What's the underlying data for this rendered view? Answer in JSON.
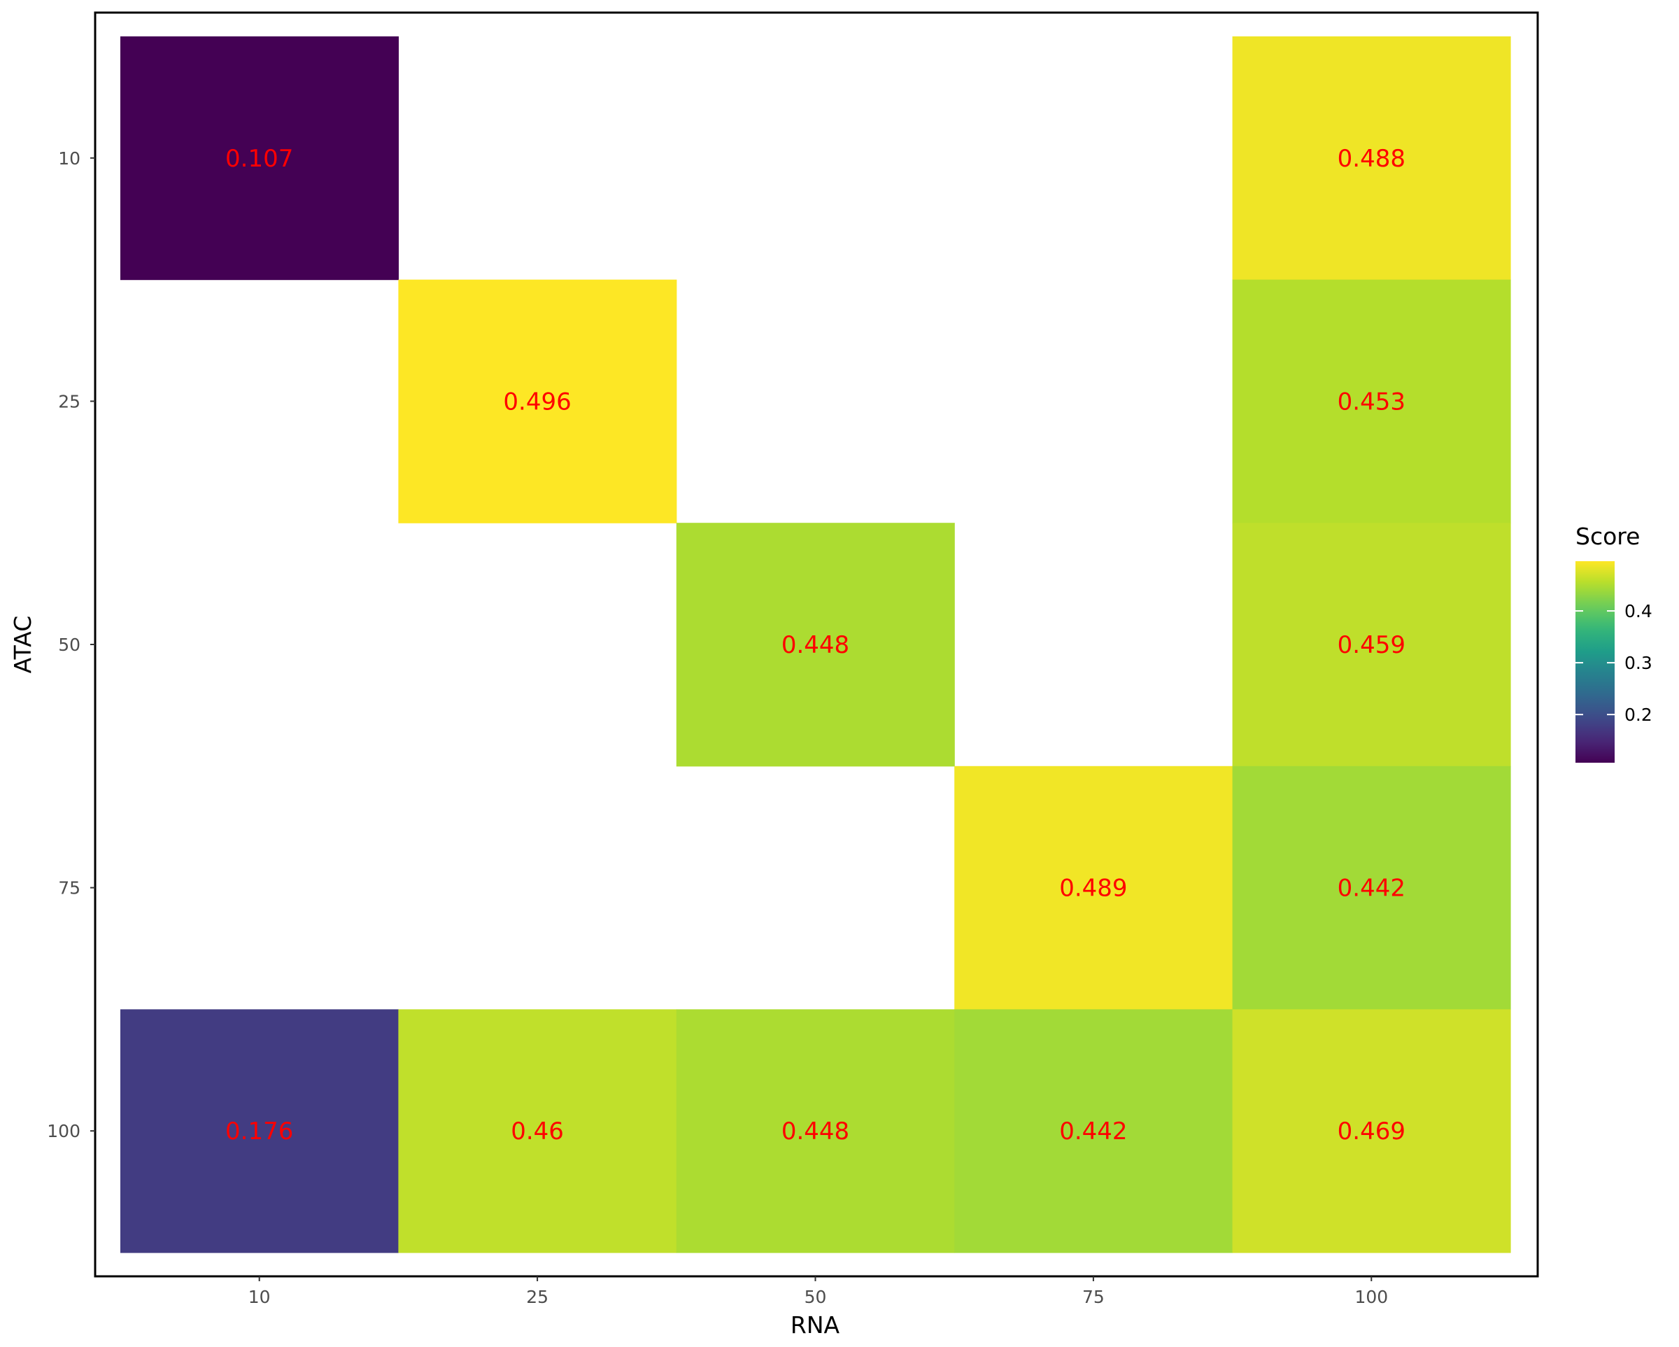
{
  "chart_data": {
    "type": "heatmap",
    "title": "",
    "xlabel": "RNA",
    "ylabel": "ATAC",
    "x_categories": [
      "10",
      "25",
      "50",
      "75",
      "100"
    ],
    "y_categories": [
      "10",
      "25",
      "50",
      "75",
      "100"
    ],
    "cells": [
      {
        "x": "10",
        "y": "10",
        "value": 0.107,
        "label": "0.107"
      },
      {
        "x": "100",
        "y": "10",
        "value": 0.488,
        "label": "0.488"
      },
      {
        "x": "25",
        "y": "25",
        "value": 0.496,
        "label": "0.496"
      },
      {
        "x": "100",
        "y": "25",
        "value": 0.453,
        "label": "0.453"
      },
      {
        "x": "50",
        "y": "50",
        "value": 0.448,
        "label": "0.448"
      },
      {
        "x": "100",
        "y": "50",
        "value": 0.459,
        "label": "0.459"
      },
      {
        "x": "75",
        "y": "75",
        "value": 0.489,
        "label": "0.489"
      },
      {
        "x": "100",
        "y": "75",
        "value": 0.442,
        "label": "0.442"
      },
      {
        "x": "10",
        "y": "100",
        "value": 0.176,
        "label": "0.176"
      },
      {
        "x": "25",
        "y": "100",
        "value": 0.46,
        "label": "0.46"
      },
      {
        "x": "50",
        "y": "100",
        "value": 0.448,
        "label": "0.448"
      },
      {
        "x": "75",
        "y": "100",
        "value": 0.442,
        "label": "0.442"
      },
      {
        "x": "100",
        "y": "100",
        "value": 0.469,
        "label": "0.469"
      }
    ],
    "legend": {
      "title": "Score",
      "ticks": [
        0.2,
        0.3,
        0.4
      ],
      "tick_labels": [
        "0.2",
        "0.3",
        "0.4"
      ],
      "range": [
        0.107,
        0.496
      ],
      "position": "right",
      "palette": "viridis"
    },
    "label_color": "#ff0000",
    "panel_border": true,
    "grid": false
  },
  "colors": {
    "viridis": [
      "#440154",
      "#482878",
      "#3E4A89",
      "#31688E",
      "#26828E",
      "#1F9E89",
      "#35B779",
      "#6DCD59",
      "#B4DE2C",
      "#FDE725"
    ]
  }
}
